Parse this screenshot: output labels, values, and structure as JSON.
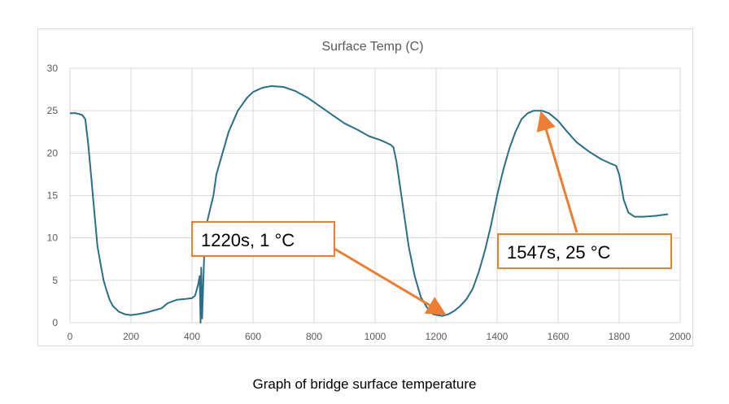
{
  "caption": "Graph of bridge surface temperature",
  "chart_data": {
    "type": "line",
    "title": "Surface Temp (C)",
    "xlabel": "",
    "ylabel": "",
    "xlim": [
      0,
      2000
    ],
    "ylim": [
      0,
      30
    ],
    "x_ticks": [
      "0",
      "200",
      "400",
      "600",
      "800",
      "1000",
      "1200",
      "1400",
      "1600",
      "1800",
      "2000"
    ],
    "y_ticks": [
      "0",
      "5",
      "10",
      "15",
      "20",
      "25",
      "30"
    ],
    "grid": true,
    "legend": "none",
    "colors": {
      "line": "#2a6f86",
      "annotation": "#ed7d31",
      "grid": "#d9d9d9",
      "tick_text": "#595959"
    },
    "series": [
      {
        "points": [
          [
            0,
            24.7
          ],
          [
            20,
            24.7
          ],
          [
            40,
            24.5
          ],
          [
            50,
            24.0
          ],
          [
            60,
            21.0
          ],
          [
            70,
            17.0
          ],
          [
            80,
            13.0
          ],
          [
            90,
            9.0
          ],
          [
            100,
            7.0
          ],
          [
            110,
            5.0
          ],
          [
            120,
            3.8
          ],
          [
            130,
            2.7
          ],
          [
            140,
            2.0
          ],
          [
            160,
            1.3
          ],
          [
            180,
            1.0
          ],
          [
            200,
            0.9
          ],
          [
            220,
            1.0
          ],
          [
            250,
            1.2
          ],
          [
            280,
            1.5
          ],
          [
            300,
            1.7
          ],
          [
            320,
            2.3
          ],
          [
            350,
            2.7
          ],
          [
            380,
            2.8
          ],
          [
            400,
            2.9
          ],
          [
            410,
            3.2
          ],
          [
            420,
            4.5
          ],
          [
            425,
            5.5
          ],
          [
            428,
            0
          ],
          [
            430,
            6.5
          ],
          [
            433,
            0.5
          ],
          [
            440,
            8.0
          ],
          [
            450,
            12.0
          ],
          [
            470,
            15.0
          ],
          [
            480,
            17.5
          ],
          [
            500,
            20.0
          ],
          [
            520,
            22.5
          ],
          [
            550,
            25.0
          ],
          [
            580,
            26.5
          ],
          [
            600,
            27.2
          ],
          [
            630,
            27.7
          ],
          [
            660,
            27.9
          ],
          [
            700,
            27.8
          ],
          [
            740,
            27.3
          ],
          [
            780,
            26.5
          ],
          [
            820,
            25.5
          ],
          [
            860,
            24.5
          ],
          [
            900,
            23.5
          ],
          [
            940,
            22.8
          ],
          [
            980,
            22.0
          ],
          [
            1020,
            21.5
          ],
          [
            1050,
            21.0
          ],
          [
            1060,
            20.7
          ],
          [
            1070,
            19.0
          ],
          [
            1090,
            14.0
          ],
          [
            1110,
            9.0
          ],
          [
            1130,
            5.5
          ],
          [
            1150,
            3.0
          ],
          [
            1170,
            1.8
          ],
          [
            1190,
            1.0
          ],
          [
            1220,
            0.8
          ],
          [
            1240,
            1.0
          ],
          [
            1260,
            1.4
          ],
          [
            1280,
            2.0
          ],
          [
            1300,
            2.8
          ],
          [
            1320,
            4.0
          ],
          [
            1340,
            6.0
          ],
          [
            1360,
            8.5
          ],
          [
            1380,
            11.5
          ],
          [
            1400,
            15.0
          ],
          [
            1420,
            18.0
          ],
          [
            1440,
            20.5
          ],
          [
            1460,
            22.5
          ],
          [
            1480,
            24.0
          ],
          [
            1500,
            24.7
          ],
          [
            1520,
            25.0
          ],
          [
            1547,
            25.0
          ],
          [
            1570,
            24.7
          ],
          [
            1600,
            23.8
          ],
          [
            1630,
            22.5
          ],
          [
            1660,
            21.3
          ],
          [
            1700,
            20.2
          ],
          [
            1740,
            19.3
          ],
          [
            1770,
            18.8
          ],
          [
            1790,
            18.5
          ],
          [
            1800,
            17.5
          ],
          [
            1815,
            14.5
          ],
          [
            1830,
            13.0
          ],
          [
            1850,
            12.5
          ],
          [
            1880,
            12.5
          ],
          [
            1920,
            12.6
          ],
          [
            1960,
            12.8
          ]
        ]
      }
    ],
    "annotations": [
      {
        "label": "1220s, 1 °C",
        "x": 1220,
        "y": 1
      },
      {
        "label": "1547s, 25 °C",
        "x": 1547,
        "y": 25
      }
    ]
  }
}
